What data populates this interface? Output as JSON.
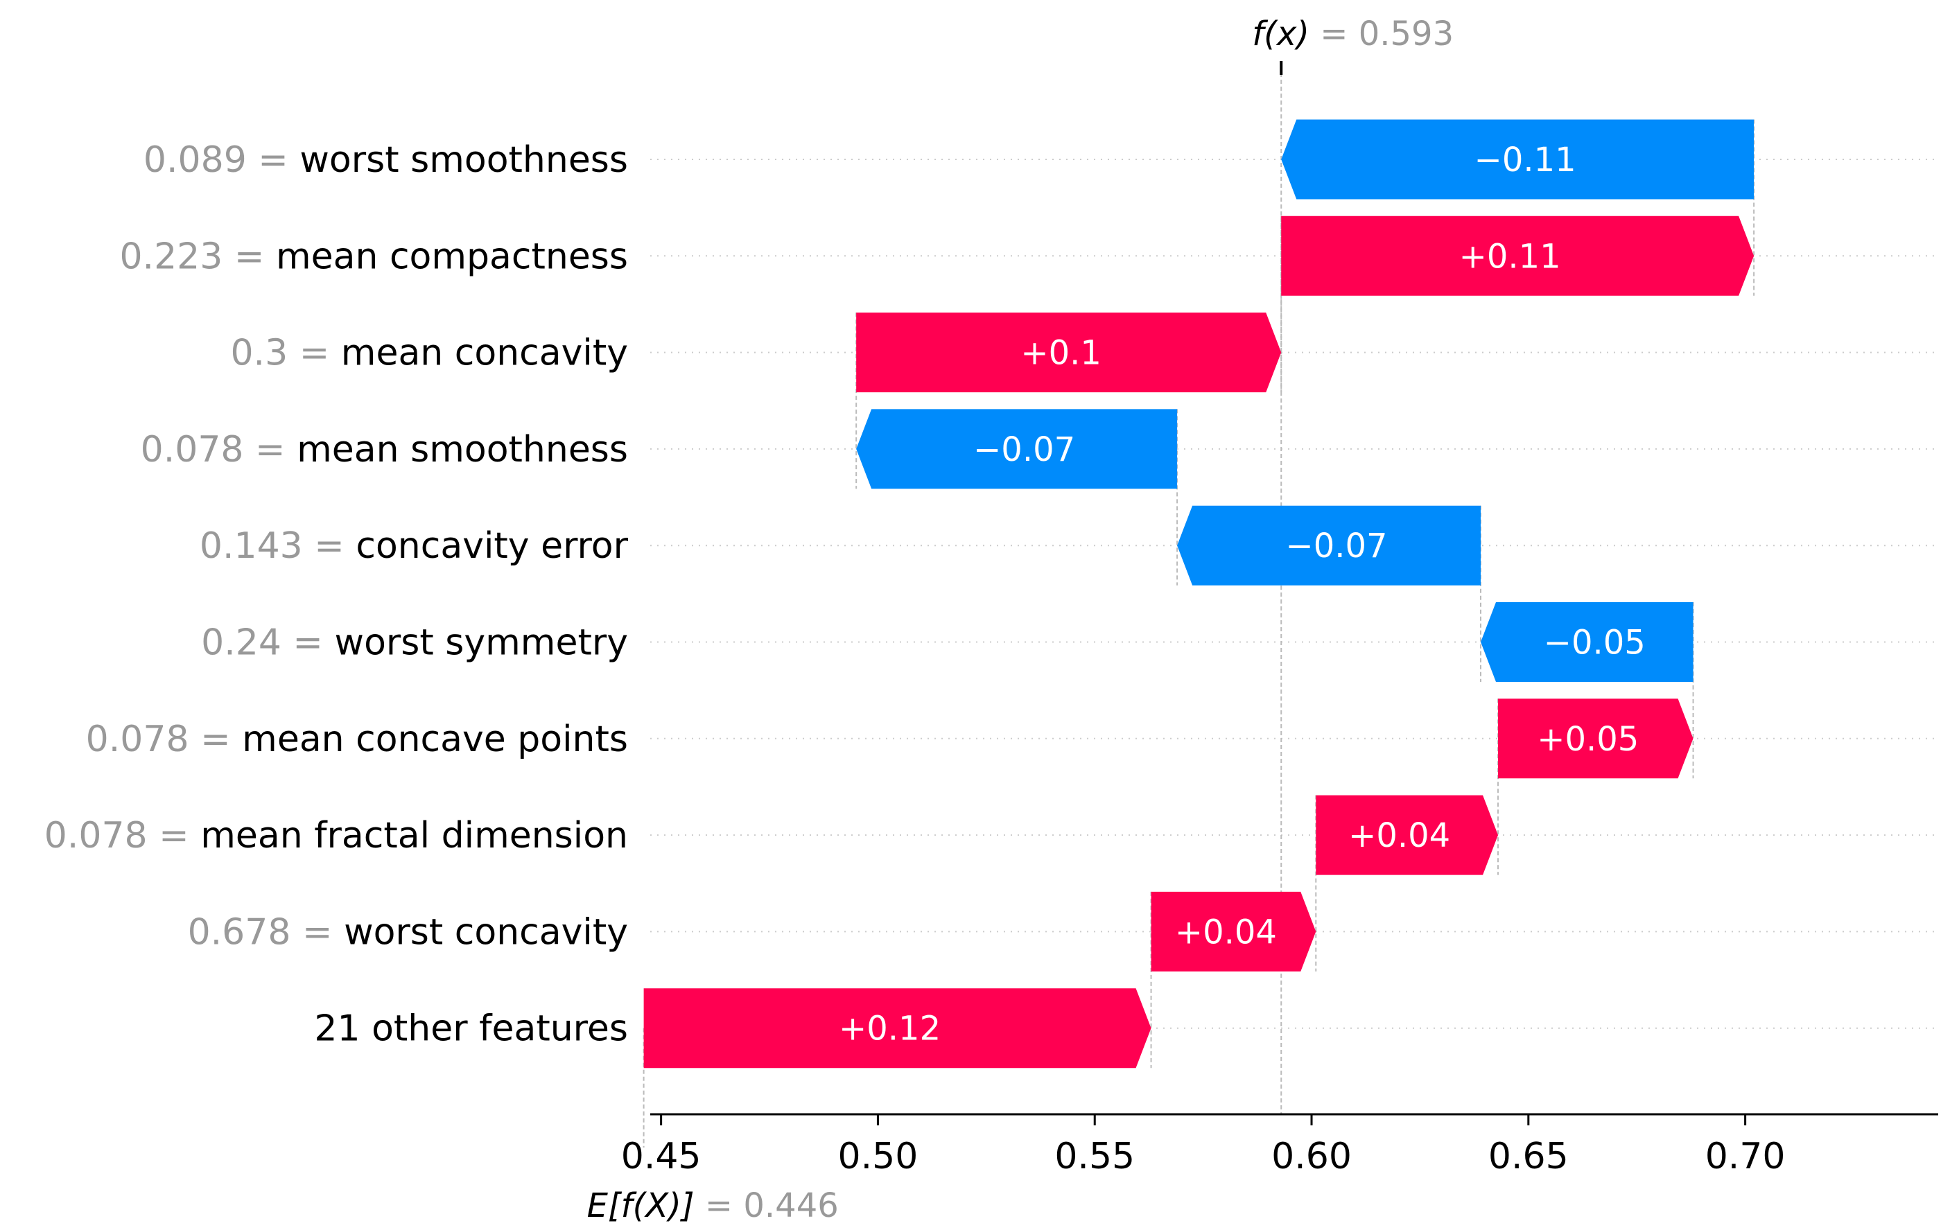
{
  "chart_data": {
    "type": "waterfall",
    "xlim": [
      0.4475,
      0.7445
    ],
    "ticks": [
      "0.45",
      "0.50",
      "0.55",
      "0.60",
      "0.65",
      "0.70"
    ],
    "tick_values": [
      0.45,
      0.5,
      0.55,
      0.6,
      0.65,
      0.7
    ],
    "base_value": 0.446,
    "output_value": 0.593,
    "base_label": {
      "prefix": "E[f(X)]",
      "value": "= 0.446"
    },
    "output_label": {
      "prefix": "f(x)",
      "value": "= 0.593"
    },
    "features": [
      {
        "value": "0.089 =",
        "name": "worst smoothness",
        "shap": -0.109,
        "label": "−0.11"
      },
      {
        "value": "0.223 =",
        "name": "mean compactness",
        "shap": 0.109,
        "label": "+0.11"
      },
      {
        "value": "0.3 =",
        "name": "mean concavity",
        "shap": 0.098,
        "label": "+0.1"
      },
      {
        "value": "0.078 =",
        "name": "mean smoothness",
        "shap": -0.074,
        "label": "−0.07"
      },
      {
        "value": "0.143 =",
        "name": "concavity error",
        "shap": -0.07,
        "label": "−0.07"
      },
      {
        "value": "0.24 =",
        "name": "worst symmetry",
        "shap": -0.049,
        "label": "−0.05"
      },
      {
        "value": "0.078 =",
        "name": "mean concave points",
        "shap": 0.045,
        "label": "+0.05"
      },
      {
        "value": "0.078 =",
        "name": "mean fractal dimension",
        "shap": 0.042,
        "label": "+0.04"
      },
      {
        "value": "0.678 =",
        "name": "worst concavity",
        "shap": 0.038,
        "label": "+0.04"
      },
      {
        "value": "",
        "name": "21 other features",
        "shap": 0.117,
        "label": "+0.12"
      }
    ],
    "colors": {
      "positive": "#ff0051",
      "negative": "#008bfb"
    }
  }
}
